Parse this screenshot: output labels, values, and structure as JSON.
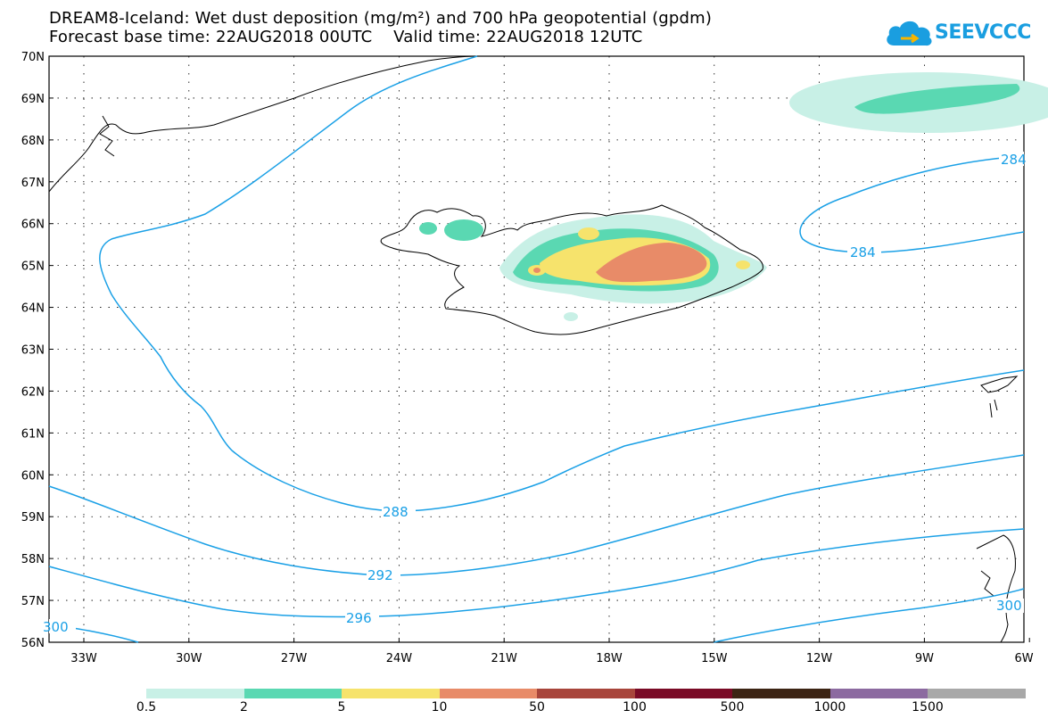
{
  "title": {
    "line1": "DREAM8-Iceland: Wet dust deposition (mg/m²) and 700 hPa geopotential (gpdm)",
    "line2": "Forecast base time: 22AUG2018 00UTC    Valid time: 22AUG2018 12UTC"
  },
  "logo": {
    "text": "SEEVCCC",
    "icon": "cloud-icon",
    "color": "#1a9ee0"
  },
  "map": {
    "lat_labels": [
      "70N",
      "69N",
      "68N",
      "67N",
      "66N",
      "65N",
      "64N",
      "63N",
      "62N",
      "61N",
      "60N",
      "59N",
      "58N",
      "57N",
      "56N"
    ],
    "lon_labels": [
      "33W",
      "30W",
      "27W",
      "24W",
      "21W",
      "18W",
      "15W",
      "12W",
      "9W",
      "6W"
    ],
    "contour_color": "#1aa0e6",
    "contour_labels": [
      "288",
      "292",
      "296",
      "300",
      "284",
      "284",
      "300"
    ]
  },
  "colorbar": {
    "colors": [
      "#c8f0e6",
      "#5ad8b2",
      "#f6e36c",
      "#e88b68",
      "#a8453b",
      "#7a0a26",
      "#3c2414",
      "#8c6aa0",
      "#a8a8a8"
    ],
    "labels": [
      "0.5",
      "2",
      "5",
      "10",
      "50",
      "100",
      "500",
      "1000",
      "1500"
    ]
  }
}
